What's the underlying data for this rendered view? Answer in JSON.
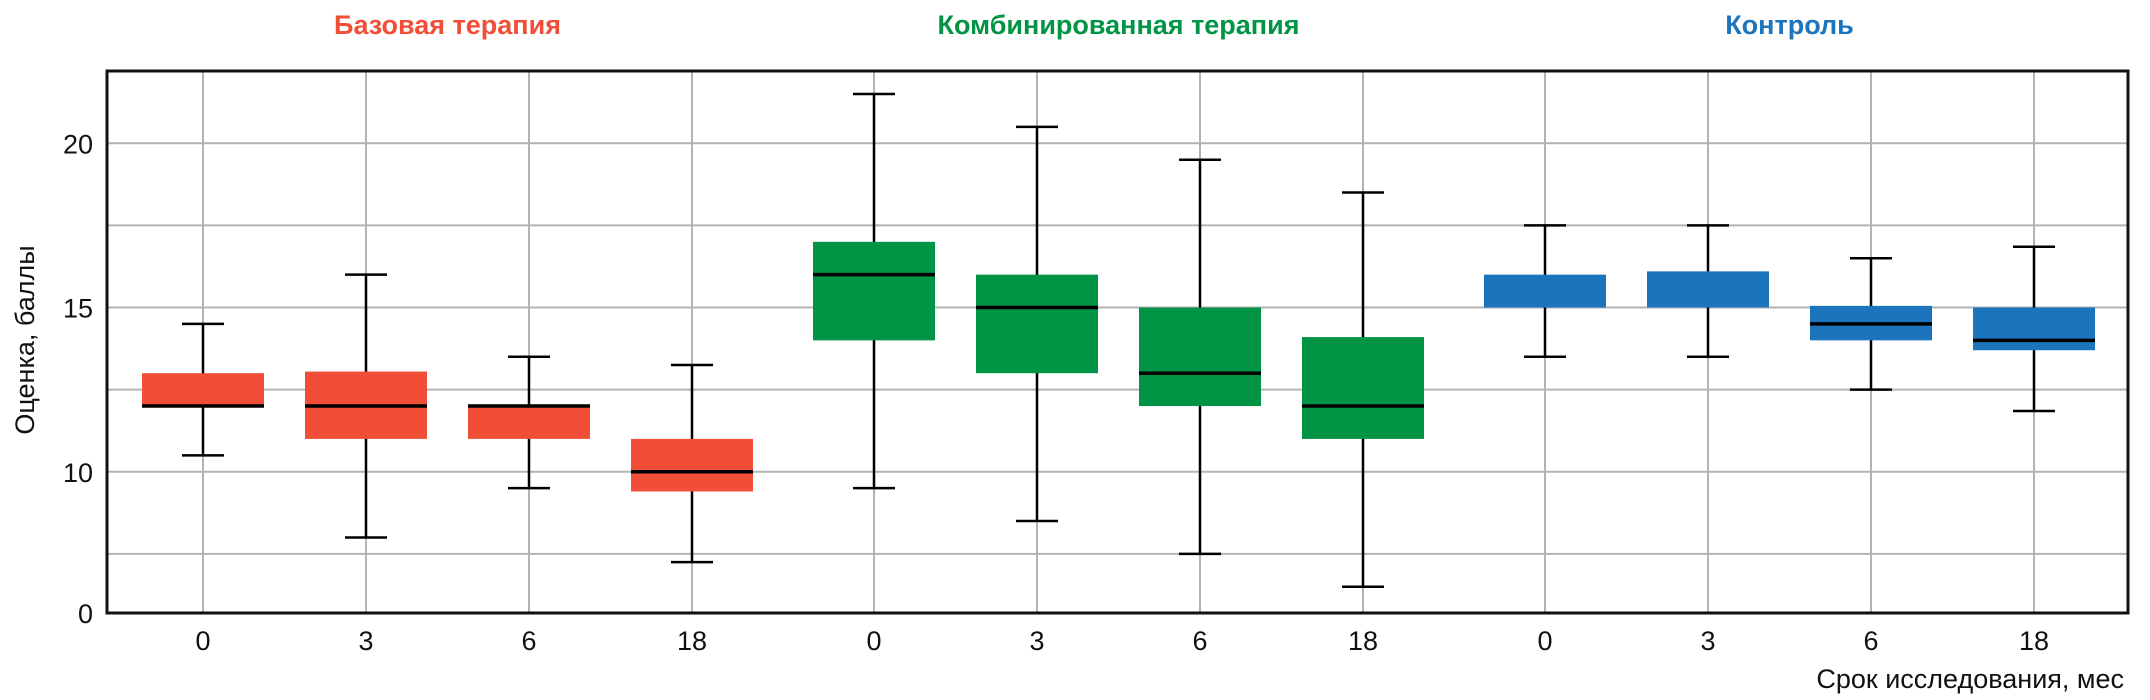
{
  "chart_data": {
    "type": "boxplot",
    "ylabel": "Оценка, баллы",
    "xlabel": "Срок исследования, мес",
    "ylim": [
      5.7,
      22.2
    ],
    "y_ticks": [
      10,
      15,
      20
    ],
    "y_axis_break_label": "0",
    "y_minor_grid": [
      7.5,
      12.5,
      17.5
    ],
    "grid": true,
    "groups": [
      {
        "name": "Базовая терапия",
        "color": "#F04E37",
        "categories": [
          "0",
          "3",
          "6",
          "18"
        ],
        "boxes": [
          {
            "min": 10.5,
            "q1": 12,
            "median": 12,
            "q3": 13,
            "max": 14.5
          },
          {
            "min": 8,
            "q1": 11,
            "median": 12,
            "q3": 13.05,
            "max": 16
          },
          {
            "min": 9.5,
            "q1": 11,
            "median": 12,
            "q3": 12.05,
            "max": 13.5
          },
          {
            "min": 7.25,
            "q1": 9.4,
            "median": 10,
            "q3": 11,
            "max": 13.25
          }
        ]
      },
      {
        "name": "Комбинированная терапия",
        "color": "#009444",
        "categories": [
          "0",
          "3",
          "6",
          "18"
        ],
        "boxes": [
          {
            "min": 9.5,
            "q1": 14,
            "median": 16,
            "q3": 17,
            "max": 21.5
          },
          {
            "min": 8.5,
            "q1": 13,
            "median": 15,
            "q3": 16,
            "max": 20.5
          },
          {
            "min": 7.5,
            "q1": 12,
            "median": 13,
            "q3": 15,
            "max": 19.5
          },
          {
            "min": 6.5,
            "q1": 11,
            "median": 12,
            "q3": 14.1,
            "max": 18.5
          }
        ]
      },
      {
        "name": "Контроль",
        "color": "#1C75BC",
        "categories": [
          "0",
          "3",
          "6",
          "18"
        ],
        "boxes": [
          {
            "min": 13.5,
            "q1": 15,
            "median": 15,
            "q3": 16,
            "max": 17.5
          },
          {
            "min": 13.5,
            "q1": 15,
            "median": 15,
            "q3": 16.1,
            "max": 17.5
          },
          {
            "min": 12.5,
            "q1": 14,
            "median": 14.5,
            "q3": 15.05,
            "max": 16.5
          },
          {
            "min": 11.85,
            "q1": 13.7,
            "median": 14,
            "q3": 15,
            "max": 16.85
          }
        ]
      }
    ]
  }
}
